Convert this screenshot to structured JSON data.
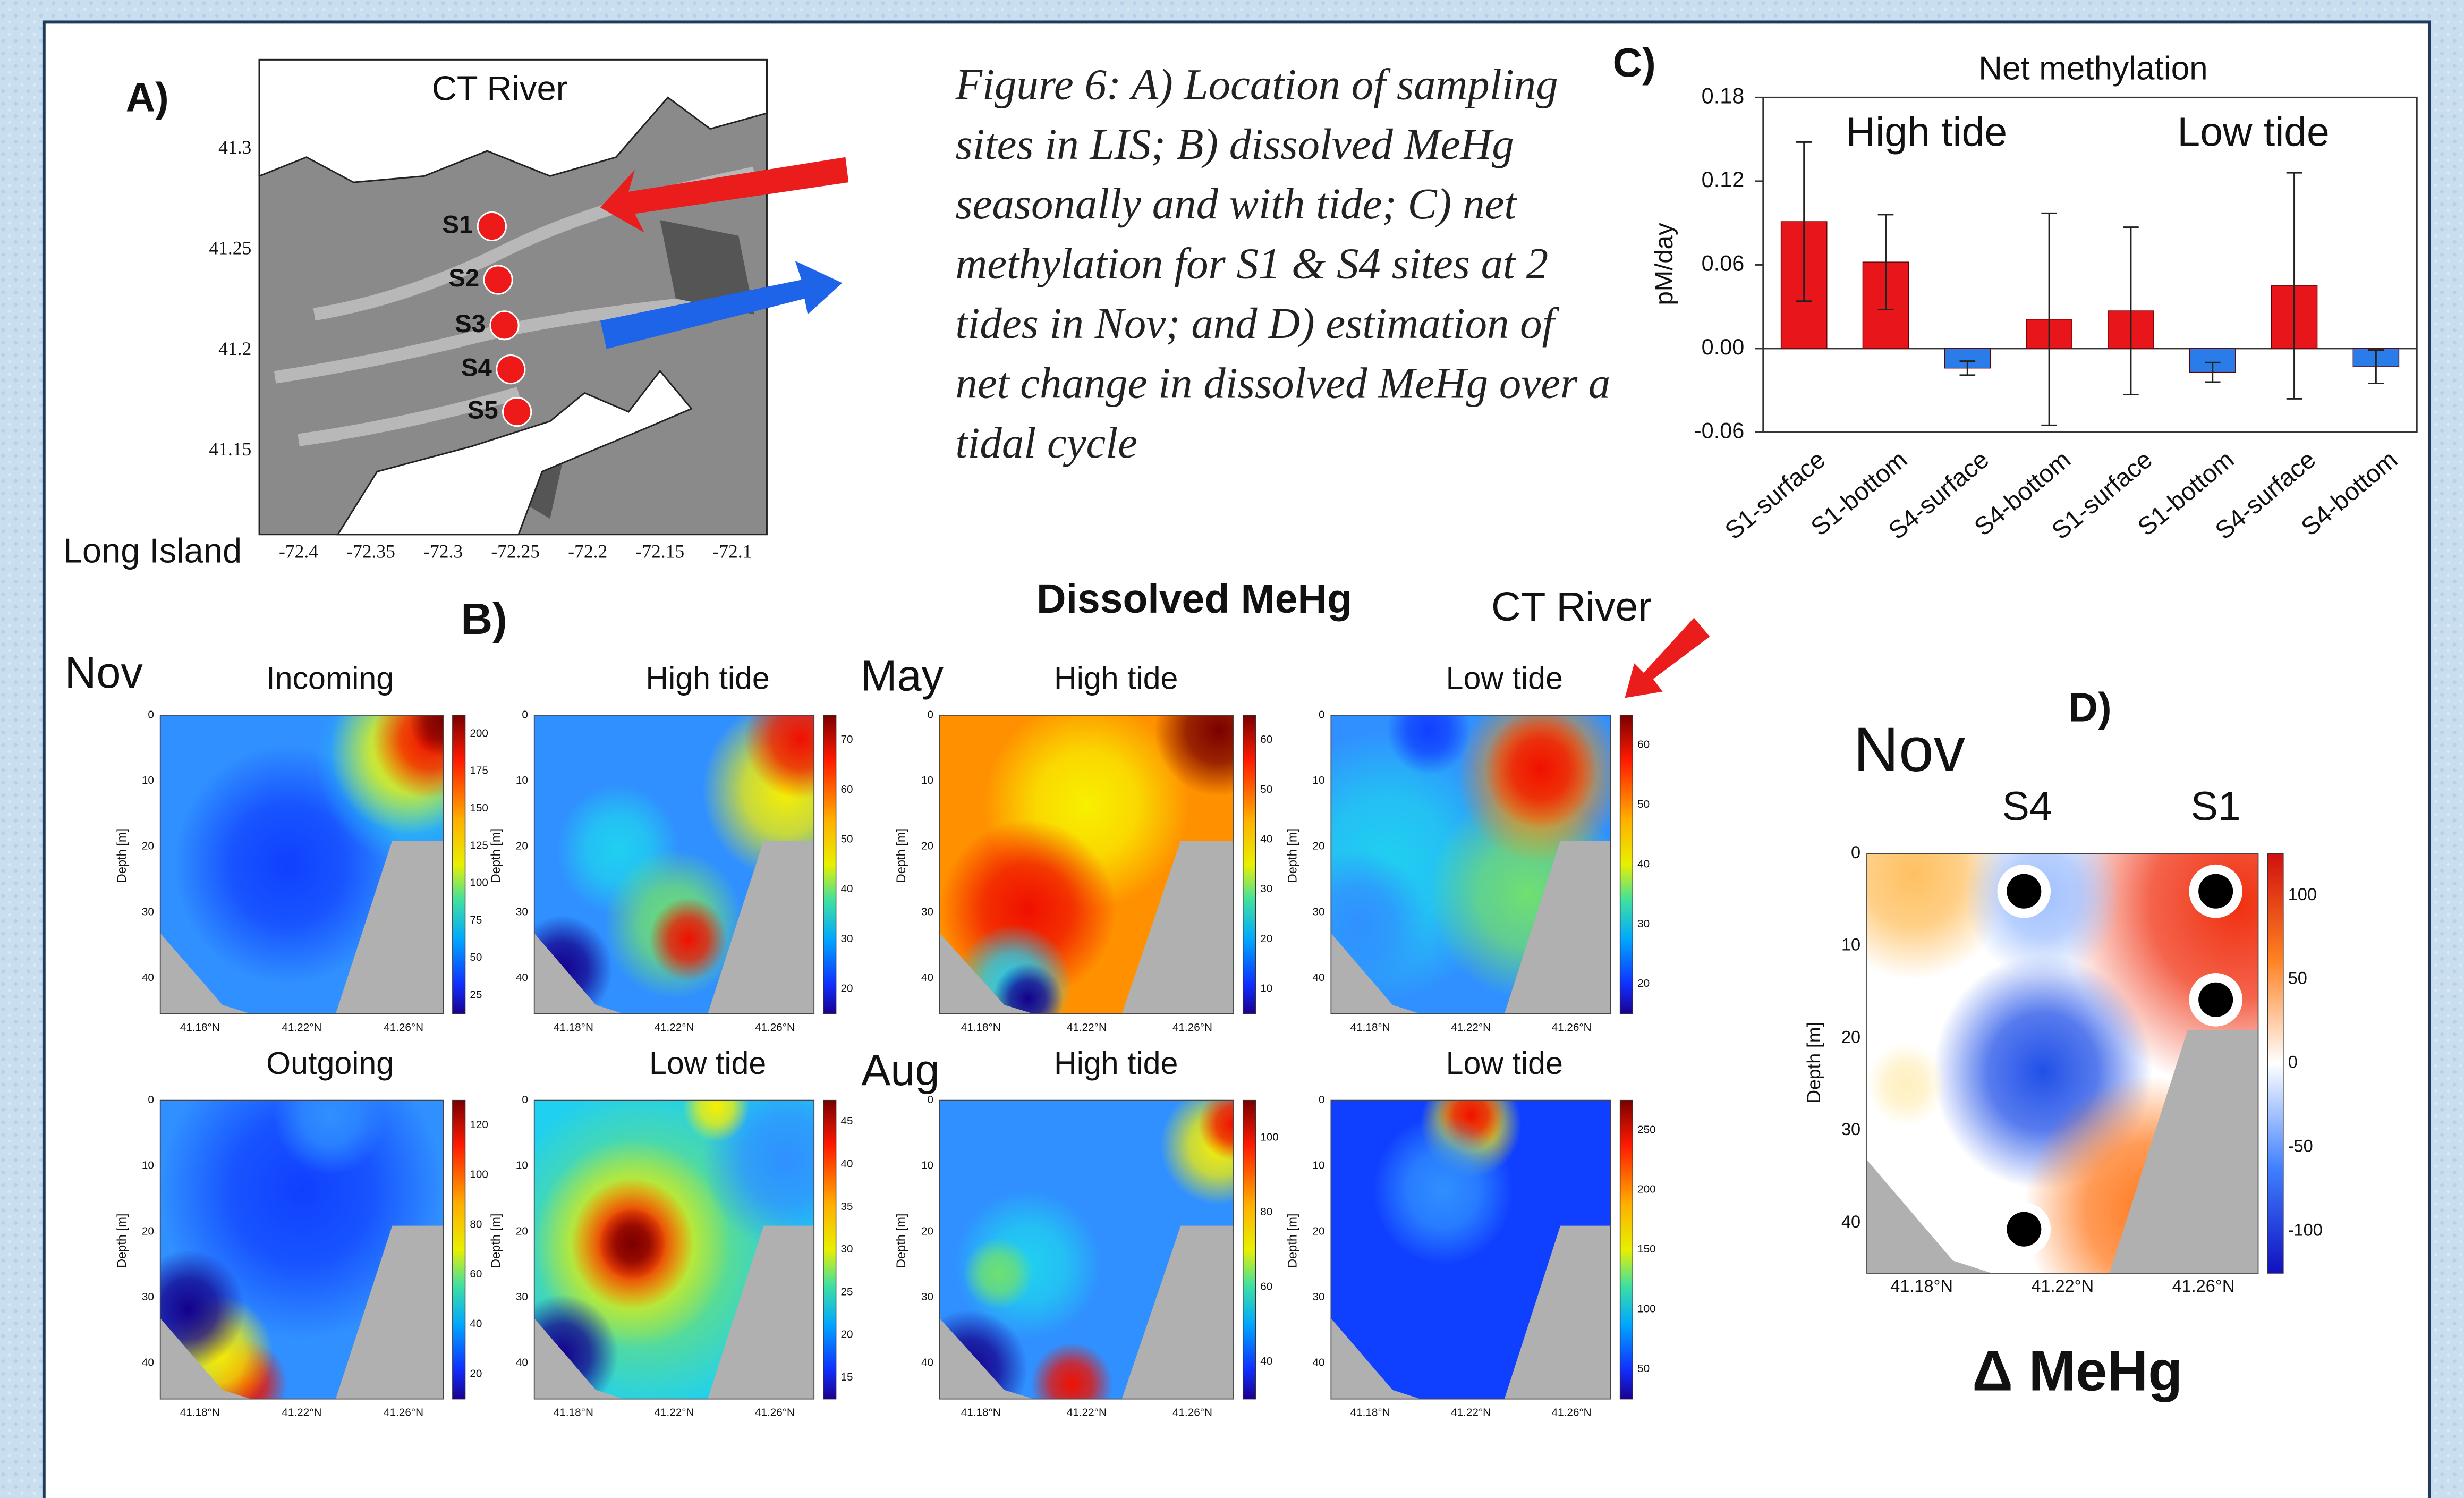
{
  "figure_caption": "Figure 6: A) Location of sampling sites in LIS; B) dissolved MeHg seasonally and with tide; C) net methylation for S1 & S4 sites at 2 tides in Nov; and D) estimation of net change in dissolved MeHg over a tidal cycle",
  "panel_a": {
    "label": "A)",
    "river": "CT River",
    "island": "Long Island",
    "sites": [
      "S1",
      "S2",
      "S3",
      "S4",
      "S5"
    ],
    "lat_ticks": [
      "41.3",
      "41.25",
      "41.2",
      "41.15"
    ],
    "lon_ticks": [
      "-72.4",
      "-72.35",
      "-72.3",
      "-72.25",
      "-72.2",
      "-72.15",
      "-72.1"
    ]
  },
  "panel_b": {
    "label": "B)",
    "title": "Dissolved MeHg",
    "river": "CT River",
    "seasons": [
      "Nov",
      "May",
      "Aug"
    ],
    "depth_label": "Depth [m]",
    "depth_ticks": [
      "0",
      "10",
      "20",
      "30",
      "40"
    ],
    "lat_labels": [
      "41.18°N",
      "41.22°N",
      "41.26°N"
    ],
    "plots": [
      {
        "title": "Incoming",
        "colorbar": [
          "200",
          "175",
          "150",
          "125",
          "100",
          "75",
          "50",
          "25"
        ]
      },
      {
        "title": "High tide",
        "colorbar": [
          "70",
          "60",
          "50",
          "40",
          "30",
          "20"
        ]
      },
      {
        "title": "High tide",
        "colorbar": [
          "60",
          "50",
          "40",
          "30",
          "20",
          "10"
        ]
      },
      {
        "title": "Low tide",
        "colorbar": [
          "60",
          "50",
          "40",
          "30",
          "20"
        ]
      },
      {
        "title": "Outgoing",
        "colorbar": [
          "120",
          "100",
          "80",
          "60",
          "40",
          "20"
        ]
      },
      {
        "title": "Low tide",
        "colorbar": [
          "45",
          "40",
          "35",
          "30",
          "25",
          "20",
          "15"
        ]
      },
      {
        "title": "High tide",
        "colorbar": [
          "100",
          "80",
          "60",
          "40"
        ]
      },
      {
        "title": "Low tide",
        "colorbar": [
          "250",
          "200",
          "150",
          "100",
          "50"
        ]
      }
    ]
  },
  "chart_data": {
    "type": "bar",
    "label": "C)",
    "title": "Net methylation",
    "y_label": "pM/day",
    "annotations": [
      "High tide",
      "Low tide"
    ],
    "categories": [
      "S1-surface",
      "S1-bottom",
      "S4-surface",
      "S4-bottom",
      "S1-surface",
      "S1-bottom",
      "S4-surface",
      "S4-bottom"
    ],
    "values": [
      0.091,
      0.062,
      -0.014,
      0.021,
      0.027,
      -0.017,
      0.045,
      -0.013
    ],
    "errors": [
      0.057,
      0.034,
      0.005,
      0.076,
      0.06,
      0.007,
      0.081,
      0.012
    ],
    "colors": [
      "#e8161a",
      "#e8161a",
      "#2a7de8",
      "#e8161a",
      "#e8161a",
      "#2a7de8",
      "#e8161a",
      "#2a7de8"
    ],
    "ylim": [
      -0.06,
      0.18
    ],
    "yticks": [
      -0.06,
      {
        "value": 0,
        "label": "0.00"
      },
      0.06,
      0.12,
      0.18
    ]
  },
  "panel_d": {
    "label": "D)",
    "season": "Nov",
    "sites": [
      "S4",
      "S1"
    ],
    "title": "Δ MeHg",
    "depth_label": "Depth [m]",
    "depth_ticks": [
      "0",
      "10",
      "20",
      "30",
      "40"
    ],
    "lat_labels": [
      "41.18°N",
      "41.22°N",
      "41.26°N"
    ],
    "colorbar": [
      "100",
      "50",
      "0",
      "-50",
      "-100"
    ]
  }
}
